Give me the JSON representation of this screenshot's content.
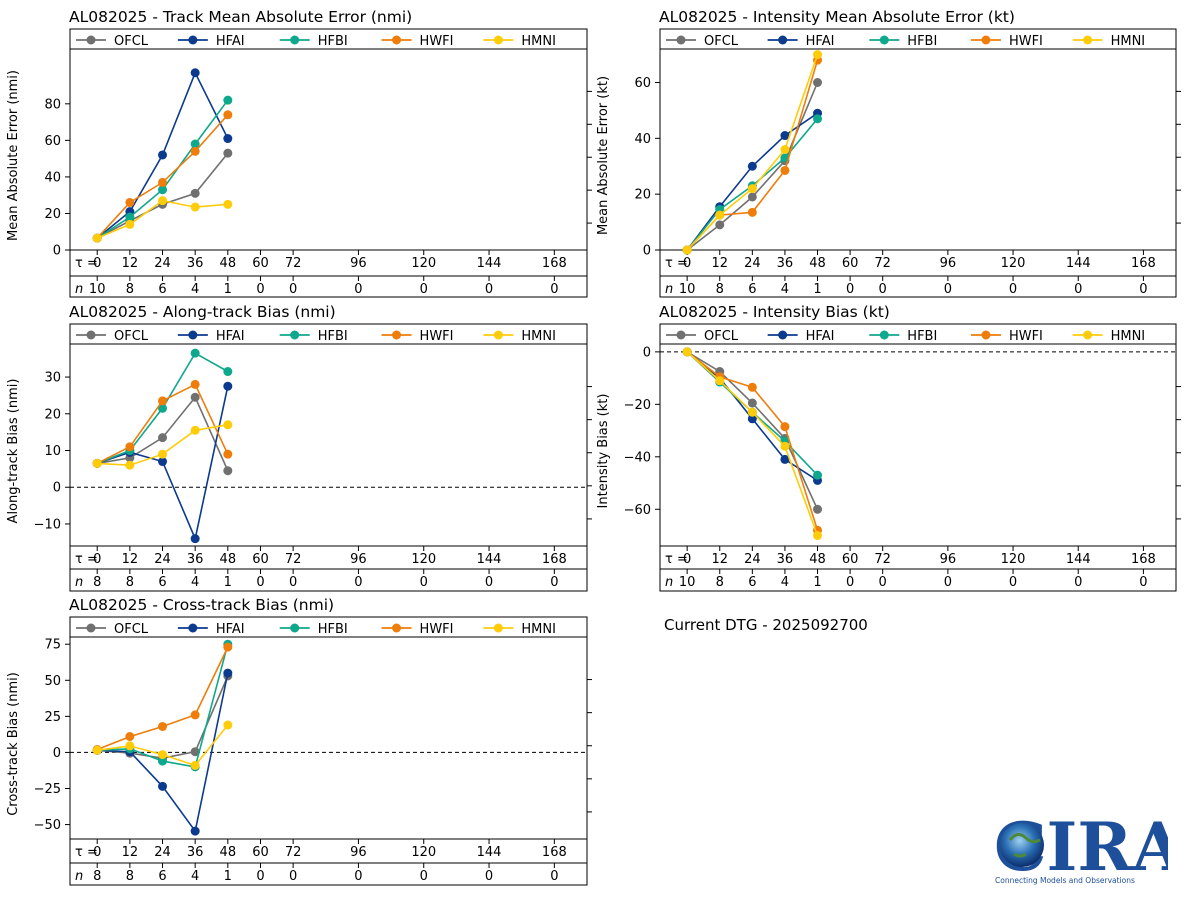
{
  "current_dtg": "Current DTG - 2025092700",
  "logo": {
    "text": "CIRA",
    "tagline": "Connecting Models and Observations"
  },
  "tau_label": "τ = ",
  "n_label": "n",
  "tau_values": [
    0,
    12,
    24,
    36,
    48,
    60,
    72,
    96,
    120,
    144,
    168
  ],
  "colors": {
    "OFCL": "#707070",
    "HFAI": "#0b3a8e",
    "HFBI": "#0ea88c",
    "HWFI": "#ee7d0a",
    "HMNI": "#ffcc0a"
  },
  "legend": [
    "OFCL",
    "HFAI",
    "HFBI",
    "HWFI",
    "HMNI"
  ],
  "chart_data": [
    {
      "id": "track",
      "type": "line",
      "title": "AL082025 - Track Mean Absolute Error (nmi)",
      "ylabel": "Mean Absolute Error (nmi)",
      "ylim": [
        0,
        110
      ],
      "yticks": [
        0,
        20,
        40,
        60,
        80
      ],
      "zero_line": false,
      "n": [
        10,
        8,
        6,
        4,
        1,
        0,
        0,
        0,
        0,
        0,
        0
      ],
      "x": [
        0,
        12,
        24,
        36,
        48
      ],
      "series": [
        {
          "name": "OFCL",
          "values": [
            6.5,
            16,
            25,
            31,
            53
          ]
        },
        {
          "name": "HFAI",
          "values": [
            6.5,
            21,
            52,
            97,
            61
          ]
        },
        {
          "name": "HFBI",
          "values": [
            6.5,
            18,
            33,
            58,
            82
          ]
        },
        {
          "name": "HWFI",
          "values": [
            6.5,
            26,
            37,
            54,
            74
          ]
        },
        {
          "name": "HMNI",
          "values": [
            6.5,
            14,
            27,
            23.5,
            25
          ]
        }
      ]
    },
    {
      "id": "intensity",
      "type": "line",
      "title": "AL082025 - Intensity Mean Absolute Error (kt)",
      "ylabel": "Mean Absolute Error (kt)",
      "ylim": [
        0,
        72
      ],
      "yticks": [
        0,
        20,
        40,
        60
      ],
      "zero_line": false,
      "n": [
        10,
        8,
        6,
        4,
        1,
        0,
        0,
        0,
        0,
        0,
        0
      ],
      "x": [
        0,
        12,
        24,
        36,
        48
      ],
      "series": [
        {
          "name": "OFCL",
          "values": [
            0,
            9,
            19,
            32,
            60
          ]
        },
        {
          "name": "HFAI",
          "values": [
            0,
            15.5,
            30,
            41,
            49
          ]
        },
        {
          "name": "HFBI",
          "values": [
            0,
            14.5,
            23,
            33,
            47
          ]
        },
        {
          "name": "HWFI",
          "values": [
            0,
            12.5,
            13.5,
            28.5,
            68
          ]
        },
        {
          "name": "HMNI",
          "values": [
            0,
            12.5,
            22,
            36,
            70
          ]
        }
      ]
    },
    {
      "id": "along",
      "type": "line",
      "title": "AL082025 - Along-track Bias (nmi)",
      "ylabel": "Along-track Bias (nmi)",
      "ylim": [
        -16,
        39
      ],
      "yticks": [
        -10,
        0,
        10,
        20,
        30
      ],
      "zero_line": true,
      "n": [
        8,
        8,
        6,
        4,
        1,
        0,
        0,
        0,
        0,
        0,
        0
      ],
      "x": [
        0,
        12,
        24,
        36,
        48
      ],
      "series": [
        {
          "name": "OFCL",
          "values": [
            6.5,
            8,
            13.5,
            24.5,
            4.5
          ]
        },
        {
          "name": "HFAI",
          "values": [
            6.5,
            9.5,
            7,
            -14,
            27.5
          ]
        },
        {
          "name": "HFBI",
          "values": [
            6.5,
            10,
            21.5,
            36.5,
            31.5
          ]
        },
        {
          "name": "HWFI",
          "values": [
            6.5,
            11,
            23.5,
            28,
            9
          ]
        },
        {
          "name": "HMNI",
          "values": [
            6.5,
            6,
            9,
            15.5,
            17
          ]
        }
      ]
    },
    {
      "id": "intbias",
      "type": "line",
      "title": "AL082025 - Intensity Bias (kt)",
      "ylabel": "Intensity Bias (kt)",
      "ylim": [
        -74,
        3
      ],
      "yticks": [
        -60,
        -40,
        -20,
        0
      ],
      "zero_line": true,
      "n": [
        10,
        8,
        6,
        4,
        1,
        0,
        0,
        0,
        0,
        0,
        0
      ],
      "x": [
        0,
        12,
        24,
        36,
        48
      ],
      "series": [
        {
          "name": "OFCL",
          "values": [
            0,
            -7.5,
            -19.5,
            -33,
            -60
          ]
        },
        {
          "name": "HFAI",
          "values": [
            0,
            -10,
            -25.5,
            -41,
            -49
          ]
        },
        {
          "name": "HFBI",
          "values": [
            0,
            -11.5,
            -23,
            -34,
            -47
          ]
        },
        {
          "name": "HWFI",
          "values": [
            0,
            -9.5,
            -13.5,
            -28.5,
            -68
          ]
        },
        {
          "name": "HMNI",
          "values": [
            0,
            -11,
            -23,
            -36,
            -70
          ]
        }
      ]
    },
    {
      "id": "cross",
      "type": "line",
      "title": "AL082025 - Cross-track Bias (nmi)",
      "ylabel": "Cross-track Bias (nmi)",
      "ylim": [
        -60,
        80
      ],
      "yticks": [
        -50,
        -25,
        0,
        25,
        50,
        75
      ],
      "zero_line": true,
      "n": [
        8,
        8,
        6,
        4,
        1,
        0,
        0,
        0,
        0,
        0,
        0
      ],
      "x": [
        0,
        12,
        24,
        36,
        48
      ],
      "series": [
        {
          "name": "OFCL",
          "values": [
            1.5,
            -0.5,
            -4,
            0.5,
            53
          ]
        },
        {
          "name": "HFAI",
          "values": [
            1.5,
            0.5,
            -23.5,
            -54.5,
            55
          ]
        },
        {
          "name": "HFBI",
          "values": [
            1.5,
            2.5,
            -6,
            -10,
            75
          ]
        },
        {
          "name": "HWFI",
          "values": [
            2,
            11,
            18,
            26,
            73
          ]
        },
        {
          "name": "HMNI",
          "values": [
            1.5,
            4.5,
            -1.5,
            -9,
            19
          ]
        }
      ]
    }
  ]
}
